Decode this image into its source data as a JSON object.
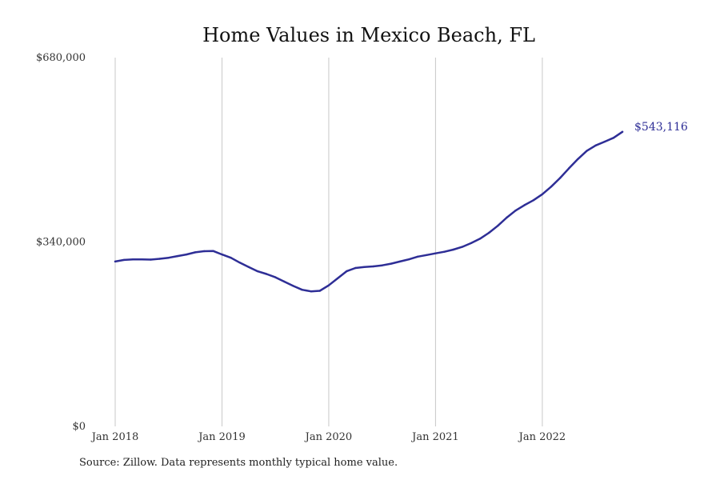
{
  "chart_data": {
    "type": "line",
    "title": "Home Values in Mexico Beach, FL",
    "xlabel": "",
    "ylabel": "",
    "ylim": [
      0,
      680000
    ],
    "y_ticks": [
      0,
      340000,
      680000
    ],
    "y_tick_labels": [
      "$0",
      "$340,000",
      "$680,000"
    ],
    "x_ticks": [
      "2018-01",
      "2019-01",
      "2020-01",
      "2021-01",
      "2022-01"
    ],
    "x_tick_labels": [
      "Jan 2018",
      "Jan 2019",
      "Jan 2020",
      "Jan 2021",
      "Jan 2022"
    ],
    "x_range": [
      "2018-01",
      "2022-10"
    ],
    "grid": "vertical",
    "line_color": "#2e2e96",
    "grid_color": "#c8c8c8",
    "series": [
      {
        "x": [
          "2018-01",
          "2018-02",
          "2018-03",
          "2018-04",
          "2018-05",
          "2018-06",
          "2018-07",
          "2018-08",
          "2018-09",
          "2018-10",
          "2018-11",
          "2018-12",
          "2019-01",
          "2019-02",
          "2019-03",
          "2019-04",
          "2019-05",
          "2019-06",
          "2019-07",
          "2019-08",
          "2019-09",
          "2019-10",
          "2019-11",
          "2019-12",
          "2020-01",
          "2020-02",
          "2020-03",
          "2020-04",
          "2020-05",
          "2020-06",
          "2020-07",
          "2020-08",
          "2020-09",
          "2020-10",
          "2020-11",
          "2020-12",
          "2021-01",
          "2021-02",
          "2021-03",
          "2021-04",
          "2021-05",
          "2021-06",
          "2021-07",
          "2021-08",
          "2021-09",
          "2021-10",
          "2021-11",
          "2021-12",
          "2022-01",
          "2022-02",
          "2022-03",
          "2022-04",
          "2022-05",
          "2022-06",
          "2022-07",
          "2022-08",
          "2022-09",
          "2022-10"
        ],
        "values": [
          304000,
          307000,
          308000,
          308000,
          307500,
          309000,
          311000,
          314000,
          317000,
          321000,
          323000,
          323500,
          317000,
          311000,
          302000,
          294000,
          286000,
          281000,
          275000,
          267000,
          259000,
          252000,
          249000,
          250000,
          260000,
          273000,
          286000,
          292000,
          294000,
          295000,
          297000,
          300000,
          304000,
          308000,
          313000,
          316000,
          319000,
          322000,
          326000,
          331000,
          338000,
          346000,
          357000,
          370000,
          385000,
          398000,
          408000,
          417000,
          428000,
          442000,
          458000,
          476000,
          493000,
          508000,
          518000,
          525000,
          532000,
          543116
        ]
      }
    ],
    "end_label": "$543,116"
  },
  "source_note": "Source: Zillow. Data represents monthly typical home value."
}
